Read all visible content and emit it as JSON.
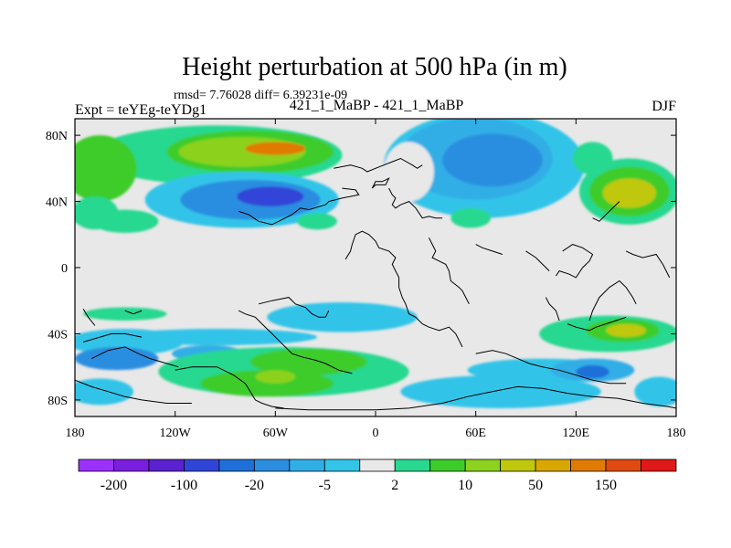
{
  "chart_data": {
    "type": "heatmap",
    "title": "Height perturbation at 500 hPa (in m)",
    "subtitle_stats": "rmsd= 7.76028 diff= 6.39231e-09",
    "left_label": "Expt = teYEg-teYDg1",
    "center_label": "421_1_MaBP - 421_1_MaBP",
    "right_label": "DJF",
    "x_range": [
      -180,
      180
    ],
    "y_range": [
      -90,
      90
    ],
    "x_ticks": [
      {
        "value": -180,
        "label": "180"
      },
      {
        "value": -120,
        "label": "120W"
      },
      {
        "value": -60,
        "label": "60W"
      },
      {
        "value": 0,
        "label": "0"
      },
      {
        "value": 60,
        "label": "60E"
      },
      {
        "value": 120,
        "label": "120E"
      },
      {
        "value": 180,
        "label": "180"
      }
    ],
    "y_ticks": [
      {
        "value": 80,
        "label": "80N"
      },
      {
        "value": 40,
        "label": "40N"
      },
      {
        "value": 0,
        "label": "0"
      },
      {
        "value": -40,
        "label": "40S"
      },
      {
        "value": -80,
        "label": "80S"
      }
    ],
    "colorbar": {
      "colors": [
        "#9b30ff",
        "#7a1ee0",
        "#5a22d0",
        "#3045d8",
        "#1f6fd8",
        "#2b8ee0",
        "#31aee6",
        "#33c4e8",
        "#e8e8e8",
        "#28d890",
        "#3ccc2a",
        "#8cd21e",
        "#c0c80e",
        "#d8a800",
        "#e07a00",
        "#e04a10",
        "#e01818"
      ],
      "labels": [
        {
          "after_index": 0,
          "label": "-200"
        },
        {
          "after_index": 2,
          "label": "-100"
        },
        {
          "after_index": 4,
          "label": "-20"
        },
        {
          "after_index": 6,
          "label": "-5"
        },
        {
          "after_index": 8,
          "label": "2"
        },
        {
          "after_index": 10,
          "label": "10"
        },
        {
          "after_index": 12,
          "label": "50"
        },
        {
          "after_index": 14,
          "label": "150"
        }
      ]
    },
    "blobs": [
      {
        "lon": -95,
        "lat": 68,
        "rlon": 75,
        "rlat": 18,
        "level": 9
      },
      {
        "lon": -75,
        "lat": 70,
        "rlon": 50,
        "rlat": 13,
        "level": 10
      },
      {
        "lon": -80,
        "lat": 70,
        "rlon": 38,
        "rlat": 9,
        "level": 11
      },
      {
        "lon": -60,
        "lat": 72,
        "rlon": 18,
        "rlat": 4,
        "level": 14
      },
      {
        "lon": -165,
        "lat": 60,
        "rlon": 22,
        "rlat": 20,
        "level": 10
      },
      {
        "lon": -80,
        "lat": 41,
        "rlon": 58,
        "rlat": 17,
        "level": 7
      },
      {
        "lon": -75,
        "lat": 41,
        "rlon": 42,
        "rlat": 12,
        "level": 5
      },
      {
        "lon": -63,
        "lat": 43,
        "rlon": 20,
        "rlat": 6,
        "level": 3
      },
      {
        "lon": -168,
        "lat": 33,
        "rlon": 14,
        "rlat": 10,
        "level": 9
      },
      {
        "lon": -150,
        "lat": 28,
        "rlon": 20,
        "rlat": 7,
        "level": 9
      },
      {
        "lon": 65,
        "lat": 62,
        "rlon": 60,
        "rlat": 32,
        "level": 7
      },
      {
        "lon": 60,
        "lat": 66,
        "rlon": 46,
        "rlat": 25,
        "level": 6
      },
      {
        "lon": 70,
        "lat": 65,
        "rlon": 30,
        "rlat": 16,
        "level": 5
      },
      {
        "lon": 20,
        "lat": 58,
        "rlon": 15,
        "rlat": 18,
        "level": 8
      },
      {
        "lon": 152,
        "lat": 46,
        "rlon": 30,
        "rlat": 20,
        "level": 9
      },
      {
        "lon": 152,
        "lat": 46,
        "rlon": 24,
        "rlat": 15,
        "level": 10
      },
      {
        "lon": 152,
        "lat": 45,
        "rlon": 16,
        "rlat": 9,
        "level": 12
      },
      {
        "lon": 130,
        "lat": 66,
        "rlon": 12,
        "rlat": 10,
        "level": 9
      },
      {
        "lon": 57,
        "lat": 30,
        "rlon": 12,
        "rlat": 6,
        "level": 9
      },
      {
        "lon": -35,
        "lat": 28,
        "rlon": 12,
        "rlat": 5,
        "level": 9
      },
      {
        "lon": -150,
        "lat": -28,
        "rlon": 25,
        "rlat": 4,
        "level": 9
      },
      {
        "lon": -20,
        "lat": -30,
        "rlon": 45,
        "rlat": 9,
        "level": 7
      },
      {
        "lon": -150,
        "lat": -45,
        "rlon": 35,
        "rlat": 8,
        "level": 7
      },
      {
        "lon": -95,
        "lat": -42,
        "rlon": 60,
        "rlat": 5,
        "level": 7
      },
      {
        "lon": -155,
        "lat": -55,
        "rlon": 25,
        "rlat": 7,
        "level": 5
      },
      {
        "lon": -100,
        "lat": -52,
        "rlon": 22,
        "rlat": 5,
        "level": 6
      },
      {
        "lon": -55,
        "lat": -63,
        "rlon": 75,
        "rlat": 15,
        "level": 9
      },
      {
        "lon": -40,
        "lat": -57,
        "rlon": 35,
        "rlat": 8,
        "level": 10
      },
      {
        "lon": -65,
        "lat": -70,
        "rlon": 40,
        "rlat": 8,
        "level": 10
      },
      {
        "lon": -60,
        "lat": -66,
        "rlon": 12,
        "rlat": 4,
        "level": 11
      },
      {
        "lon": -165,
        "lat": -75,
        "rlon": 20,
        "rlat": 8,
        "level": 7
      },
      {
        "lon": 75,
        "lat": -75,
        "rlon": 60,
        "rlat": 10,
        "level": 7
      },
      {
        "lon": 100,
        "lat": -62,
        "rlon": 45,
        "rlat": 7,
        "level": 7
      },
      {
        "lon": 130,
        "lat": -62,
        "rlon": 25,
        "rlat": 7,
        "level": 6
      },
      {
        "lon": 130,
        "lat": -63,
        "rlon": 10,
        "rlat": 4,
        "level": 4
      },
      {
        "lon": 140,
        "lat": -40,
        "rlon": 42,
        "rlat": 11,
        "level": 9
      },
      {
        "lon": 148,
        "lat": -38,
        "rlon": 22,
        "rlat": 7,
        "level": 10
      },
      {
        "lon": 150,
        "lat": -38,
        "rlon": 12,
        "rlat": 4,
        "level": 12
      },
      {
        "lon": 170,
        "lat": -75,
        "rlon": 15,
        "rlat": 9,
        "level": 7
      }
    ],
    "coastlines": [
      [
        [
          -20,
          48
        ],
        [
          -12,
          47
        ],
        [
          -10,
          44
        ],
        [
          -20,
          42
        ],
        [
          -28,
          40
        ],
        [
          -30,
          38
        ],
        [
          -40,
          35
        ],
        [
          -45,
          36
        ],
        [
          -50,
          32
        ],
        [
          -58,
          28
        ],
        [
          -62,
          26
        ],
        [
          -70,
          28
        ],
        [
          -76,
          32
        ],
        [
          -82,
          34
        ]
      ],
      [
        [
          -2,
          48
        ],
        [
          0,
          50
        ],
        [
          6,
          50
        ],
        [
          8,
          54
        ],
        [
          4,
          52
        ],
        [
          0,
          52
        ],
        [
          -2,
          48
        ]
      ],
      [
        [
          8,
          48
        ],
        [
          10,
          44
        ],
        [
          12,
          42
        ],
        [
          10,
          38
        ],
        [
          12,
          36
        ],
        [
          15,
          38
        ],
        [
          20,
          40
        ],
        [
          24,
          36
        ],
        [
          28,
          30
        ],
        [
          32,
          31
        ],
        [
          36,
          30
        ],
        [
          40,
          30
        ]
      ],
      [
        [
          32,
          18
        ],
        [
          34,
          14
        ],
        [
          36,
          10
        ],
        [
          34,
          6
        ],
        [
          38,
          4
        ],
        [
          42,
          2
        ],
        [
          44,
          -2
        ],
        [
          45,
          -8
        ],
        [
          50,
          -12
        ],
        [
          52,
          -14
        ],
        [
          54,
          -18
        ],
        [
          56,
          -22
        ]
      ],
      [
        [
          -18,
          5
        ],
        [
          -15,
          10
        ],
        [
          -14,
          14
        ],
        [
          -12,
          20
        ],
        [
          -8,
          22
        ],
        [
          -4,
          20
        ],
        [
          0,
          16
        ],
        [
          2,
          12
        ],
        [
          8,
          10
        ],
        [
          12,
          6
        ],
        [
          10,
          2
        ],
        [
          12,
          -2
        ],
        [
          14,
          -6
        ],
        [
          14,
          -12
        ],
        [
          16,
          -18
        ],
        [
          18,
          -22
        ],
        [
          20,
          -28
        ],
        [
          24,
          -30
        ],
        [
          28,
          -34
        ],
        [
          32,
          -36
        ],
        [
          38,
          -38
        ],
        [
          44,
          -36
        ],
        [
          48,
          -40
        ],
        [
          50,
          -44
        ],
        [
          52,
          -48
        ]
      ],
      [
        [
          -70,
          -22
        ],
        [
          -62,
          -20
        ],
        [
          -52,
          -18
        ],
        [
          -48,
          -22
        ],
        [
          -42,
          -24
        ],
        [
          -38,
          -28
        ],
        [
          -34,
          -30
        ],
        [
          -30,
          -30
        ],
        [
          -28,
          -26
        ]
      ],
      [
        [
          -82,
          -26
        ],
        [
          -78,
          -28
        ],
        [
          -72,
          -30
        ],
        [
          -68,
          -34
        ],
        [
          -62,
          -40
        ],
        [
          -56,
          -46
        ],
        [
          -50,
          -52
        ],
        [
          -44,
          -54
        ],
        [
          -36,
          -56
        ],
        [
          -30,
          -58
        ],
        [
          -22,
          -62
        ],
        [
          -14,
          -64
        ]
      ],
      [
        [
          -120,
          -62
        ],
        [
          -110,
          -60
        ],
        [
          -95,
          -60
        ],
        [
          -85,
          -65
        ],
        [
          -78,
          -70
        ],
        [
          -75,
          -75
        ],
        [
          -72,
          -80
        ],
        [
          -68,
          -82
        ],
        [
          -62,
          -84
        ],
        [
          -55,
          -85
        ]
      ],
      [
        [
          -170,
          -55
        ],
        [
          -160,
          -50
        ],
        [
          -150,
          -48
        ],
        [
          -142,
          -52
        ],
        [
          -135,
          -55
        ],
        [
          -125,
          -58
        ],
        [
          -118,
          -60
        ]
      ],
      [
        [
          -175,
          -25
        ],
        [
          -172,
          -30
        ],
        [
          -168,
          -35
        ]
      ],
      [
        [
          -150,
          -26
        ],
        [
          -145,
          -28
        ],
        [
          -140,
          -26
        ]
      ],
      [
        [
          -175,
          -45
        ],
        [
          -165,
          -42
        ],
        [
          -158,
          -40
        ],
        [
          -150,
          -40
        ],
        [
          -140,
          -42
        ]
      ],
      [
        [
          -180,
          -68
        ],
        [
          -170,
          -72
        ],
        [
          -160,
          -75
        ],
        [
          -150,
          -78
        ],
        [
          -140,
          -80
        ],
        [
          -125,
          -82
        ],
        [
          -110,
          -82
        ]
      ],
      [
        [
          -60,
          -85
        ],
        [
          -40,
          -86
        ],
        [
          -20,
          -86
        ],
        [
          0,
          -86
        ],
        [
          20,
          -85
        ],
        [
          40,
          -82
        ],
        [
          55,
          -78
        ],
        [
          70,
          -75
        ],
        [
          85,
          -72
        ],
        [
          100,
          -73
        ],
        [
          115,
          -76
        ],
        [
          130,
          -78
        ],
        [
          145,
          -79
        ],
        [
          160,
          -82
        ],
        [
          175,
          -84
        ],
        [
          180,
          -85
        ]
      ],
      [
        [
          60,
          -52
        ],
        [
          70,
          -50
        ],
        [
          78,
          -52
        ],
        [
          85,
          -55
        ],
        [
          92,
          -58
        ],
        [
          100,
          -60
        ],
        [
          110,
          -62
        ],
        [
          120,
          -65
        ],
        [
          130,
          -68
        ],
        [
          140,
          -70
        ],
        [
          150,
          -70
        ]
      ],
      [
        [
          108,
          -5
        ],
        [
          110,
          -2
        ],
        [
          116,
          -4
        ],
        [
          120,
          -6
        ],
        [
          124,
          0
        ],
        [
          128,
          4
        ],
        [
          130,
          8
        ],
        [
          124,
          12
        ],
        [
          118,
          14
        ],
        [
          112,
          10
        ]
      ],
      [
        [
          102,
          -18
        ],
        [
          104,
          -22
        ],
        [
          108,
          -26
        ],
        [
          110,
          -32
        ]
      ],
      [
        [
          115,
          -34
        ],
        [
          120,
          -36
        ],
        [
          128,
          -38
        ],
        [
          132,
          -36
        ],
        [
          138,
          -34
        ],
        [
          144,
          -32
        ],
        [
          150,
          -30
        ]
      ],
      [
        [
          128,
          -32
        ],
        [
          130,
          -26
        ],
        [
          134,
          -18
        ],
        [
          140,
          -12
        ],
        [
          146,
          -8
        ],
        [
          150,
          -12
        ],
        [
          154,
          -18
        ],
        [
          156,
          -22
        ]
      ],
      [
        [
          150,
          10
        ],
        [
          154,
          8
        ],
        [
          160,
          6
        ],
        [
          168,
          8
        ],
        [
          172,
          2
        ],
        [
          176,
          -6
        ]
      ],
      [
        [
          130,
          30
        ],
        [
          134,
          28
        ],
        [
          138,
          32
        ],
        [
          142,
          36
        ],
        [
          146,
          40
        ]
      ],
      [
        [
          60,
          14
        ],
        [
          64,
          12
        ],
        [
          70,
          10
        ],
        [
          76,
          8
        ]
      ],
      [
        [
          90,
          10
        ],
        [
          96,
          6
        ],
        [
          100,
          2
        ],
        [
          104,
          -2
        ]
      ],
      [
        [
          -25,
          60
        ],
        [
          -15,
          62
        ],
        [
          -8,
          60
        ],
        [
          -5,
          58
        ],
        [
          0,
          60
        ],
        [
          5,
          62
        ],
        [
          10,
          64
        ],
        [
          15,
          66
        ],
        [
          22,
          62
        ],
        [
          25,
          60
        ],
        [
          28,
          62
        ]
      ]
    ]
  }
}
